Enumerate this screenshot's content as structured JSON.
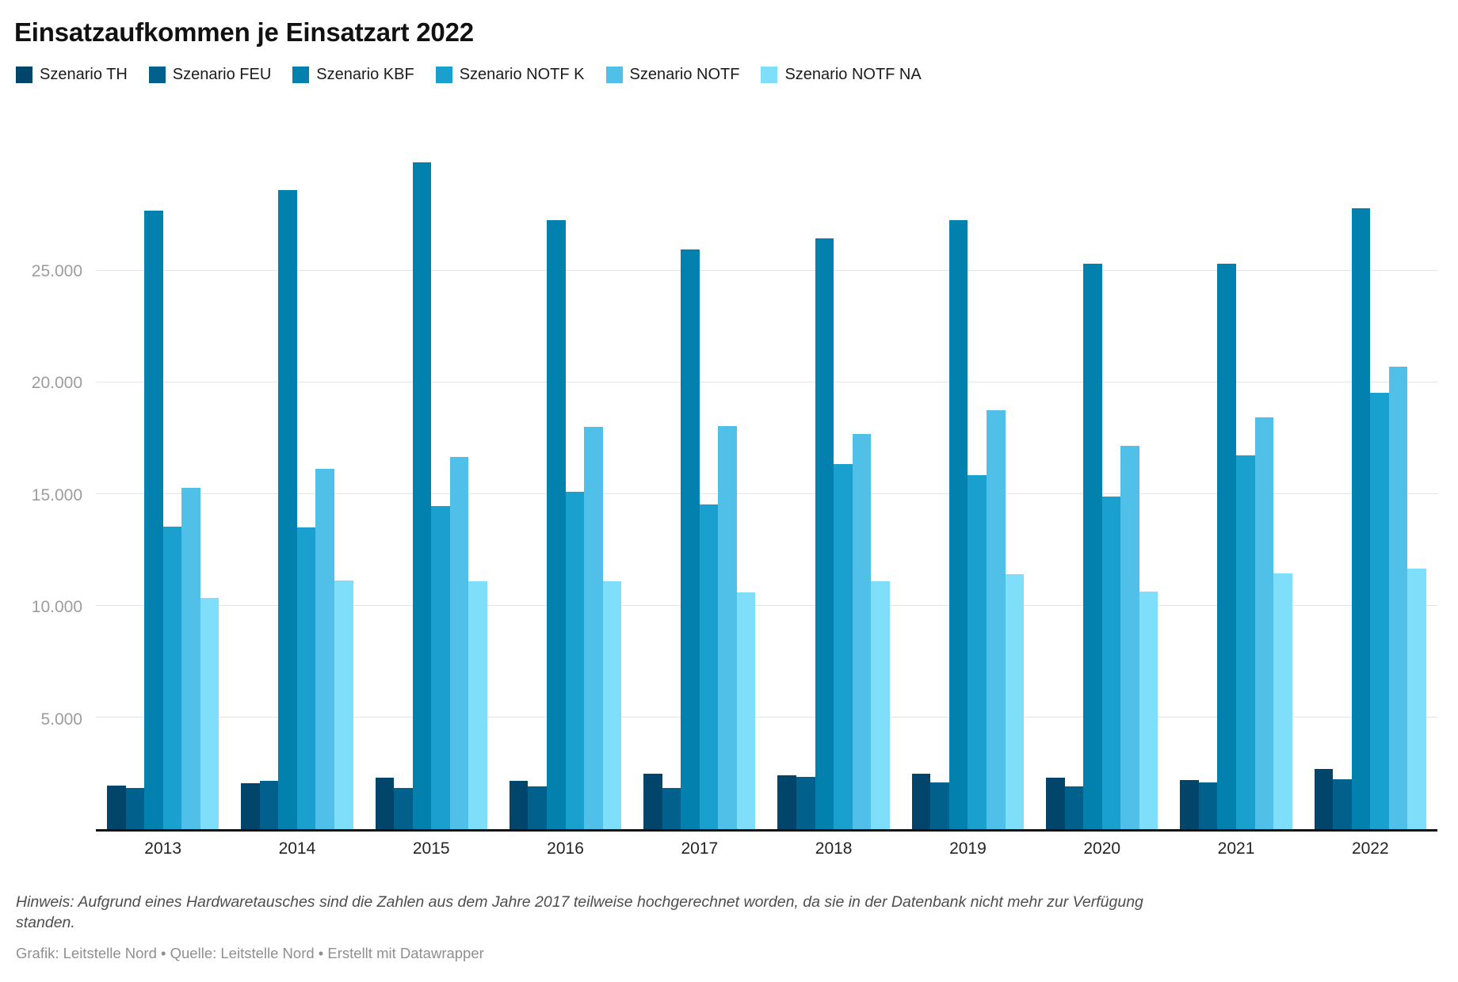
{
  "title": "Einsatzaufkommen je Einsatzart 2022",
  "legend": [
    {
      "label": "Szenario TH",
      "color": "#02456a"
    },
    {
      "label": "Szenario FEU",
      "color": "#02618c"
    },
    {
      "label": "Szenario KBF",
      "color": "#0381ae"
    },
    {
      "label": "Szenario NOTF K",
      "color": "#1aa0ce"
    },
    {
      "label": "Szenario NOTF",
      "color": "#50c0e8"
    },
    {
      "label": "Szenario NOTF NA",
      "color": "#7fdffb"
    }
  ],
  "chart_data": {
    "type": "bar",
    "title": "Einsatzaufkommen je Einsatzart 2022",
    "categories": [
      "2013",
      "2014",
      "2015",
      "2016",
      "2017",
      "2018",
      "2019",
      "2020",
      "2021",
      "2022"
    ],
    "series": [
      {
        "name": "Szenario TH",
        "color": "#02456a",
        "values": [
          1950,
          2050,
          2300,
          2150,
          2500,
          2400,
          2500,
          2300,
          2200,
          2700
        ]
      },
      {
        "name": "Szenario FEU",
        "color": "#02618c",
        "values": [
          1850,
          2150,
          1850,
          1900,
          1850,
          2350,
          2100,
          1900,
          2100,
          2250
        ]
      },
      {
        "name": "Szenario KBF",
        "color": "#0381ae",
        "values": [
          27700,
          28600,
          29850,
          27250,
          25950,
          26450,
          27250,
          25300,
          25300,
          27800
        ]
      },
      {
        "name": "Szenario NOTF K",
        "color": "#1aa0ce",
        "values": [
          13550,
          13500,
          14450,
          15100,
          14550,
          16350,
          15850,
          14900,
          16750,
          19550
        ]
      },
      {
        "name": "Szenario NOTF",
        "color": "#50c0e8",
        "values": [
          15300,
          16150,
          16650,
          18000,
          18050,
          17700,
          18750,
          17150,
          18450,
          20700
        ]
      },
      {
        "name": "Szenario NOTF NA",
        "color": "#7fdffb",
        "values": [
          10350,
          11150,
          11100,
          11100,
          10600,
          11100,
          11400,
          10650,
          11450,
          11650
        ]
      }
    ],
    "xlabel": "",
    "ylabel": "",
    "ylim": [
      0,
      31450
    ],
    "axis_max": 31450,
    "grid": true,
    "legend_position": "top",
    "y_ticks": [
      {
        "value": 5000,
        "label": "5.000"
      },
      {
        "value": 10000,
        "label": "10.000"
      },
      {
        "value": 15000,
        "label": "15.000"
      },
      {
        "value": 20000,
        "label": "20.000"
      },
      {
        "value": 25000,
        "label": "25.000"
      }
    ]
  },
  "footnote": "Hinweis: Aufgrund eines Hardwaretausches sind die Zahlen aus dem Jahre 2017 teilweise hochgerechnet worden, da sie in der Datenbank nicht mehr zur Verfügung standen.",
  "credit": "Grafik: Leitstelle Nord • Quelle: Leitstelle Nord • Erstellt mit Datawrapper"
}
